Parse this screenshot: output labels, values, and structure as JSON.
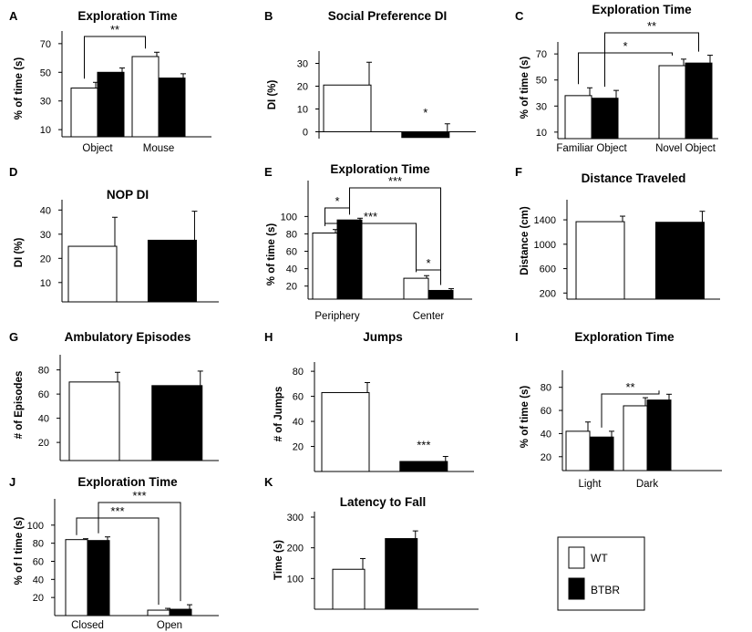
{
  "legend": {
    "entries": [
      {
        "label": "WT",
        "color": "#ffffff"
      },
      {
        "label": "BTBR",
        "color": "#000000"
      }
    ]
  },
  "chart_data": [
    {
      "id": "A",
      "letter": "A",
      "type": "bar",
      "title": "Exploration Time",
      "ylabel": "% of time (s)",
      "categories": [
        "Object",
        "Mouse"
      ],
      "series": [
        {
          "name": "WT",
          "values": [
            39,
            61
          ],
          "errors": [
            4,
            3
          ]
        },
        {
          "name": "BTBR",
          "values": [
            50,
            46
          ],
          "errors": [
            3,
            3
          ]
        }
      ],
      "ylim": [
        5,
        75
      ],
      "yticks": [
        10,
        30,
        50,
        70
      ],
      "significance": [
        {
          "label": "**",
          "from": [
            0,
            0
          ],
          "to": [
            1,
            0
          ]
        }
      ]
    },
    {
      "id": "B",
      "letter": "B",
      "type": "bar",
      "title": "Social Preference DI",
      "ylabel": "DI (%)",
      "categories": [
        ""
      ],
      "series": [
        {
          "name": "WT",
          "values": [
            20.5
          ],
          "errors": [
            10
          ]
        },
        {
          "name": "BTBR",
          "values": [
            -2.5
          ],
          "errors": [
            6
          ]
        }
      ],
      "ylim": [
        -3,
        33
      ],
      "yticks": [
        0,
        10,
        20,
        30
      ],
      "significance": [
        {
          "label": "*",
          "over": [
            0,
            1
          ]
        }
      ]
    },
    {
      "id": "C",
      "letter": "C",
      "type": "bar",
      "title": "Exploration Time",
      "ylabel": "% of time (s)",
      "categories": [
        "Familiar Object",
        "Novel Object"
      ],
      "series": [
        {
          "name": "WT",
          "values": [
            38,
            61
          ],
          "errors": [
            6,
            5
          ]
        },
        {
          "name": "BTBR",
          "values": [
            36,
            63
          ],
          "errors": [
            6,
            6
          ]
        }
      ],
      "ylim": [
        5,
        75
      ],
      "yticks": [
        10,
        30,
        50,
        70
      ],
      "significance": [
        {
          "label": "*",
          "from": [
            0,
            0
          ],
          "to": [
            1,
            0
          ]
        },
        {
          "label": "**",
          "from": [
            0,
            1
          ],
          "to": [
            1,
            1
          ]
        }
      ]
    },
    {
      "id": "D",
      "letter": "D",
      "type": "bar",
      "title": "NOP DI",
      "ylabel": "DI (%)",
      "categories": [
        ""
      ],
      "series": [
        {
          "name": "WT",
          "values": [
            25
          ],
          "errors": [
            12
          ]
        },
        {
          "name": "BTBR",
          "values": [
            27.5
          ],
          "errors": [
            12
          ]
        }
      ],
      "ylim": [
        2,
        42
      ],
      "yticks": [
        10,
        20,
        30,
        40
      ],
      "significance": []
    },
    {
      "id": "E",
      "letter": "E",
      "type": "bar",
      "title": "Exploration Time",
      "ylabel": "% of time (s)",
      "categories": [
        "Periphery",
        "Center"
      ],
      "series": [
        {
          "name": "WT",
          "values": [
            81,
            29
          ],
          "errors": [
            4,
            3
          ]
        },
        {
          "name": "BTBR",
          "values": [
            96,
            15
          ],
          "errors": [
            2,
            2
          ]
        }
      ],
      "ylim": [
        5,
        135
      ],
      "yticks": [
        20,
        40,
        60,
        80,
        100
      ],
      "significance": [
        {
          "label": "*",
          "from": [
            0,
            0
          ],
          "to": [
            0,
            1
          ]
        },
        {
          "label": "***",
          "from": [
            0,
            0
          ],
          "to": [
            1,
            0
          ]
        },
        {
          "label": "*",
          "from": [
            1,
            0
          ],
          "to": [
            1,
            1
          ]
        },
        {
          "label": "***",
          "from": [
            0,
            1
          ],
          "to": [
            1,
            1
          ]
        }
      ]
    },
    {
      "id": "F",
      "letter": "F",
      "type": "bar",
      "title": "Distance Traveled",
      "ylabel": "Distance (cm)",
      "categories": [
        ""
      ],
      "series": [
        {
          "name": "WT",
          "values": [
            1370
          ],
          "errors": [
            90
          ]
        },
        {
          "name": "BTBR",
          "values": [
            1360
          ],
          "errors": [
            180
          ]
        }
      ],
      "ylim": [
        100,
        1640
      ],
      "yticks": [
        200,
        600,
        1000,
        1400
      ],
      "significance": []
    },
    {
      "id": "G",
      "letter": "G",
      "type": "bar",
      "title": "Ambulatory Episodes",
      "ylabel": "# of Episodes",
      "categories": [
        ""
      ],
      "series": [
        {
          "name": "WT",
          "values": [
            70
          ],
          "errors": [
            8
          ]
        },
        {
          "name": "BTBR",
          "values": [
            67
          ],
          "errors": [
            12
          ]
        }
      ],
      "ylim": [
        5,
        88
      ],
      "yticks": [
        20,
        40,
        60,
        80
      ],
      "significance": []
    },
    {
      "id": "H",
      "letter": "H",
      "type": "bar",
      "title": "Jumps",
      "ylabel": "# of Jumps",
      "categories": [
        ""
      ],
      "series": [
        {
          "name": "WT",
          "values": [
            63
          ],
          "errors": [
            8
          ]
        },
        {
          "name": "BTBR",
          "values": [
            8
          ],
          "errors": [
            4
          ]
        }
      ],
      "ylim": [
        0,
        83
      ],
      "yticks": [
        20,
        40,
        60,
        80
      ],
      "significance": [
        {
          "label": "***",
          "over": [
            0,
            1
          ]
        }
      ]
    },
    {
      "id": "I",
      "letter": "I",
      "type": "bar",
      "title": "Exploration Time",
      "ylabel": "% of time (s)",
      "categories": [
        "Light",
        "Dark"
      ],
      "series": [
        {
          "name": "WT",
          "values": [
            42,
            64
          ],
          "errors": [
            8,
            7
          ]
        },
        {
          "name": "BTBR",
          "values": [
            37,
            69
          ],
          "errors": [
            5,
            5
          ]
        }
      ],
      "ylim": [
        8,
        90
      ],
      "yticks": [
        20,
        40,
        60,
        80
      ],
      "significance": [
        {
          "label": "**",
          "from": [
            0,
            1
          ],
          "to": [
            1,
            1
          ]
        }
      ]
    },
    {
      "id": "J",
      "letter": "J",
      "type": "bar",
      "title": "Exploration Time",
      "ylabel": "% of l time (s)",
      "categories": [
        "Closed",
        "Open"
      ],
      "series": [
        {
          "name": "WT",
          "values": [
            84,
            6
          ],
          "errors": [
            1,
            2
          ]
        },
        {
          "name": "BTBR",
          "values": [
            83,
            7
          ],
          "errors": [
            4,
            5
          ]
        }
      ],
      "ylim": [
        0,
        123
      ],
      "yticks": [
        20,
        40,
        60,
        80,
        100
      ],
      "significance": [
        {
          "label": "***",
          "from": [
            0,
            0
          ],
          "to": [
            1,
            0
          ]
        },
        {
          "label": "***",
          "from": [
            0,
            1
          ],
          "to": [
            1,
            1
          ]
        }
      ]
    },
    {
      "id": "K",
      "letter": "K",
      "type": "bar",
      "title": "Latency to Fall",
      "ylabel": "Time (s)",
      "categories": [
        ""
      ],
      "series": [
        {
          "name": "WT",
          "values": [
            130
          ],
          "errors": [
            35
          ]
        },
        {
          "name": "BTBR",
          "values": [
            230
          ],
          "errors": [
            25
          ]
        }
      ],
      "ylim": [
        0,
        300
      ],
      "yticks": [
        100,
        200,
        300
      ],
      "significance": []
    }
  ]
}
